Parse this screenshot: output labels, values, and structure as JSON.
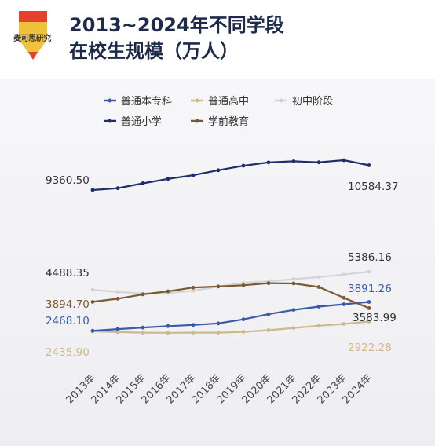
{
  "header": {
    "logo_text": "麦可思研究",
    "title_line1": "2013~2024年不同学段",
    "title_line2": "在校生规模（万人）"
  },
  "chart_data": {
    "type": "line",
    "title": "2013~2024年不同学段在校生规模（万人）",
    "categories": [
      "2013年",
      "2014年",
      "2015年",
      "2016年",
      "2017年",
      "2018年",
      "2019年",
      "2020年",
      "2021年",
      "2022年",
      "2023年",
      "2024年"
    ],
    "series": [
      {
        "name": "普通本专科",
        "color": "#3a5aa8",
        "values": [
          2468.1,
          2547.7,
          2625.3,
          2695.8,
          2753.6,
          2831.0,
          3031.5,
          3285.3,
          3496.1,
          3659.4,
          3775.0,
          3891.26
        ]
      },
      {
        "name": "普通高中",
        "color": "#cdb98e",
        "values": [
          2435.9,
          2400.5,
          2374.4,
          2366.6,
          2374.5,
          2375.4,
          2414.3,
          2494.5,
          2605.0,
          2713.9,
          2803.6,
          2922.28
        ]
      },
      {
        "name": "初中阶段",
        "color": "#d4d4d8",
        "values": [
          4488.35,
          4384.6,
          4312.1,
          4329.4,
          4442.1,
          4652.6,
          4827.1,
          4914.1,
          5018.4,
          5120.6,
          5243.7,
          5386.16
        ]
      },
      {
        "name": "普通小学",
        "color": "#1f2d6b",
        "values": [
          9360.5,
          9451.1,
          9692.2,
          9913.0,
          10093.7,
          10339.3,
          10561.2,
          10725.4,
          10779.9,
          10732.0,
          10836.0,
          10584.37
        ]
      },
      {
        "name": "学前教育",
        "color": "#7b5a33",
        "values": [
          3894.7,
          4050.7,
          4264.8,
          4413.9,
          4600.1,
          4656.4,
          4713.9,
          4818.3,
          4805.2,
          4627.6,
          4093.0,
          3583.99
        ]
      }
    ],
    "labels": [
      {
        "series": 3,
        "index": 0,
        "text": "9360.50",
        "color": "#333333"
      },
      {
        "series": 3,
        "index": 11,
        "text": "10584.37",
        "color": "#333333"
      },
      {
        "series": 2,
        "index": 0,
        "text": "4488.35",
        "color": "#333333"
      },
      {
        "series": 2,
        "index": 11,
        "text": "5386.16",
        "color": "#333333"
      },
      {
        "series": 4,
        "index": 0,
        "text": "3894.70",
        "color": "#7b5a33"
      },
      {
        "series": 0,
        "index": 11,
        "text": "3891.26",
        "color": "#3a5aa8"
      },
      {
        "series": 0,
        "index": 0,
        "text": "2468.10",
        "color": "#3a5aa8"
      },
      {
        "series": 4,
        "index": 11,
        "text": "3583.99",
        "color": "#333333"
      },
      {
        "series": 1,
        "index": 0,
        "text": "2435.90",
        "color": "#cdb98e"
      },
      {
        "series": 1,
        "index": 11,
        "text": "2922.28",
        "color": "#cdb98e"
      }
    ],
    "legend_position": "top",
    "grid": false
  }
}
